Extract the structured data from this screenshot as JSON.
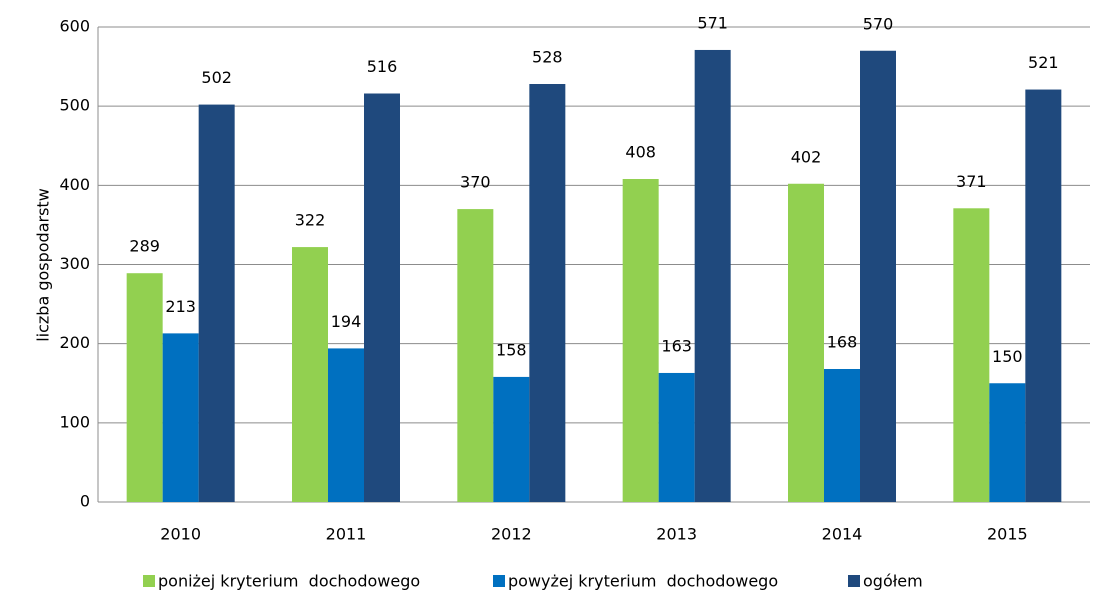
{
  "chart_data": {
    "type": "bar",
    "y_label": "liczba gospodarstw",
    "categories": [
      "2010",
      "2011",
      "2012",
      "2013",
      "2014",
      "2015"
    ],
    "series": [
      {
        "name": "poniżej kryterium  dochodowego",
        "color": "#92d050",
        "values": [
          289,
          322,
          370,
          408,
          402,
          371
        ]
      },
      {
        "name": "powyżej kryterium  dochodowego",
        "color": "#0070c0",
        "values": [
          213,
          194,
          158,
          163,
          168,
          150
        ]
      },
      {
        "name": "ogółem",
        "color": "#1f497d",
        "values": [
          502,
          516,
          528,
          571,
          570,
          521
        ]
      }
    ],
    "ylim": [
      0,
      600
    ],
    "yticks": [
      0,
      100,
      200,
      300,
      400,
      500,
      600
    ],
    "grid": true,
    "legend": "bottom"
  }
}
